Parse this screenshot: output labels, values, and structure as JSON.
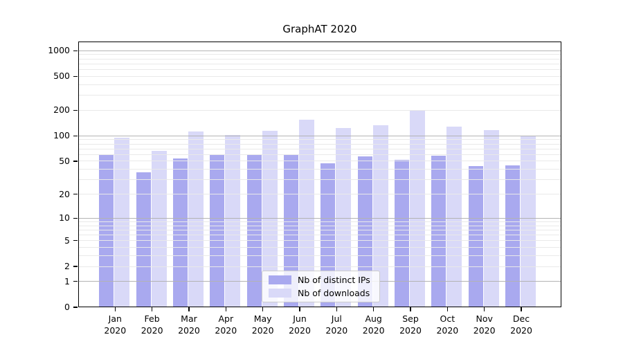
{
  "title": "GraphAT 2020",
  "chart_data": {
    "type": "bar",
    "title": "GraphAT 2020",
    "categories": [
      "Jan 2020",
      "Feb 2020",
      "Mar 2020",
      "Apr 2020",
      "May 2020",
      "Jun 2020",
      "Jul 2020",
      "Aug 2020",
      "Sep 2020",
      "Oct 2020",
      "Nov 2020",
      "Dec 2020"
    ],
    "series": [
      {
        "name": "Nb of distinct IPs",
        "color": "#a9a9ef",
        "values": [
          61,
          37,
          54,
          61,
          60,
          60,
          47,
          57,
          52,
          58,
          44,
          45
        ]
      },
      {
        "name": "Nb of downloads",
        "color": "#d9d9f8",
        "values": [
          95,
          67,
          113,
          103,
          115,
          156,
          124,
          134,
          199,
          128,
          117,
          100
        ]
      }
    ],
    "xlabel": "",
    "ylabel": "",
    "yscale": "log1p",
    "yticks": [
      0,
      1,
      2,
      5,
      10,
      20,
      50,
      100,
      200,
      500,
      1000
    ],
    "ytick_labels": [
      "0",
      "1",
      "2",
      "5",
      "10",
      "20",
      "50",
      "100",
      "200",
      "500",
      "1000"
    ],
    "ylim": [
      0,
      1280
    ],
    "grid": "horizontal, major and minor, drawn over bars",
    "legend": {
      "position": "lower center",
      "entries": [
        "Nb of distinct IPs",
        "Nb of downloads"
      ]
    }
  },
  "colors": {
    "background": "#ffffff",
    "spine": "#000000",
    "grid_major": "#b3b3b3",
    "grid_minor": "#e9e9e9",
    "distinct_ips_bar": "#a9a9ef",
    "downloads_bar": "#d9d9f8",
    "legend_border": "#cccccc"
  }
}
